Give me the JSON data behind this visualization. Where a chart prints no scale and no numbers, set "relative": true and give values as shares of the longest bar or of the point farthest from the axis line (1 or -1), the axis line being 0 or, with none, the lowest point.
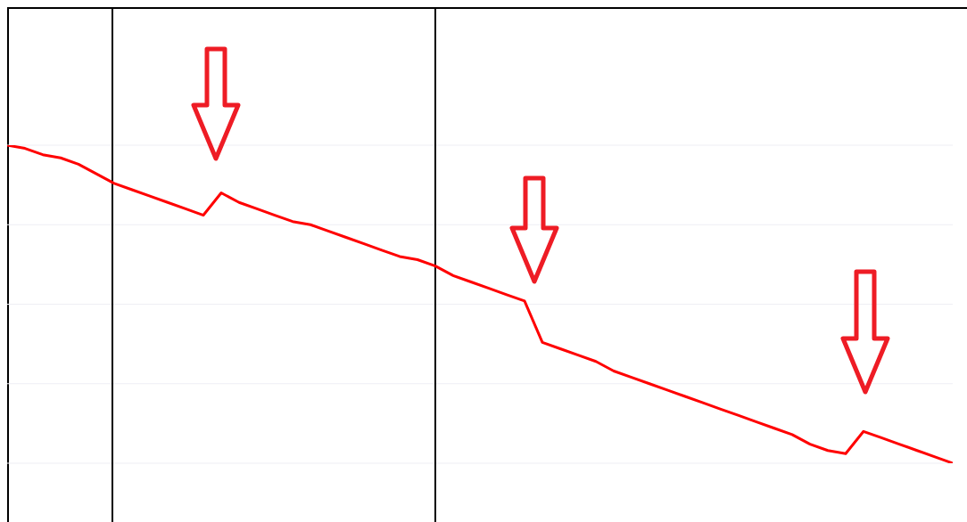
{
  "chart_data": {
    "type": "line",
    "relative": true,
    "grid": "y",
    "marker": "none",
    "line_style": "solid",
    "categories": [
      null,
      null,
      null,
      null,
      null,
      null,
      null,
      null,
      null,
      null,
      null,
      null,
      null,
      null,
      null,
      null,
      null,
      null,
      null,
      null,
      null,
      null,
      null,
      null,
      null,
      null,
      null,
      null,
      null,
      null,
      null,
      null,
      null,
      null,
      null,
      null,
      null,
      null,
      null,
      null,
      null,
      null,
      null,
      null,
      null,
      null,
      null,
      null,
      null,
      null,
      null,
      null,
      null,
      null
    ],
    "series": [
      {
        "color": "#ff0000",
        "values": [
          1.0,
          0.99,
          0.97,
          0.96,
          0.94,
          0.91,
          0.88,
          0.86,
          0.84,
          0.82,
          0.8,
          0.78,
          0.85,
          0.82,
          0.8,
          0.78,
          0.76,
          0.75,
          0.73,
          0.71,
          0.69,
          0.67,
          0.65,
          0.64,
          0.62,
          0.59,
          0.57,
          0.55,
          0.53,
          0.51,
          0.38,
          0.36,
          0.34,
          0.32,
          0.29,
          0.27,
          0.25,
          0.23,
          0.21,
          0.19,
          0.17,
          0.15,
          0.13,
          0.11,
          0.09,
          0.06,
          0.04,
          0.03,
          0.1,
          0.08,
          0.06,
          0.04,
          0.02,
          0
        ]
      }
    ]
  }
}
